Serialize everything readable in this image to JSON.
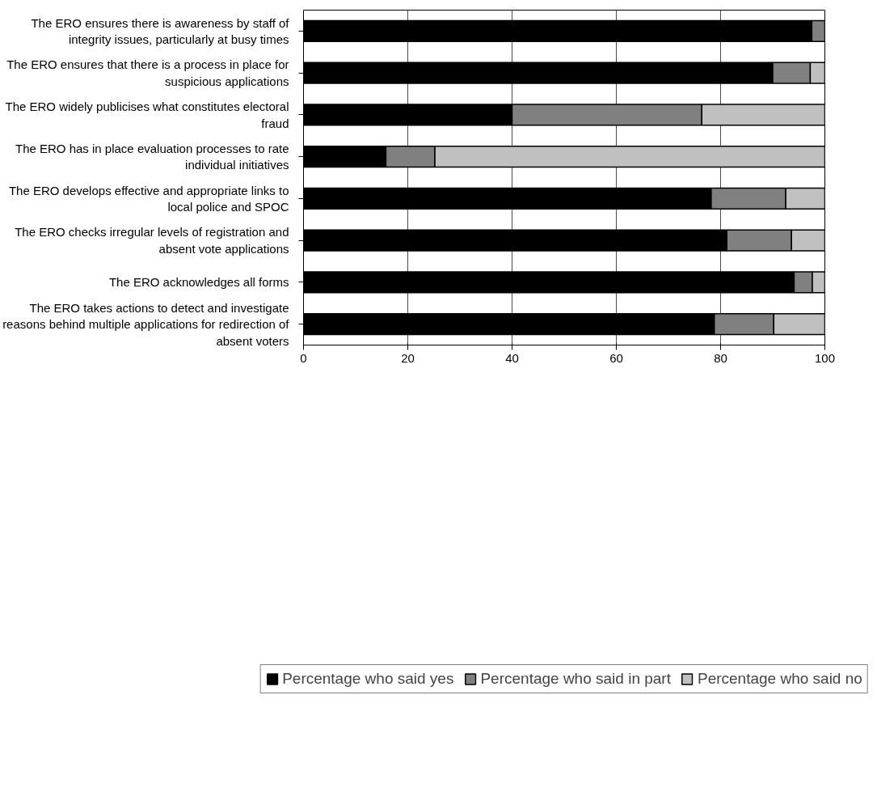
{
  "chart_data": {
    "type": "bar",
    "orientation": "horizontal",
    "stacked": true,
    "categories": [
      "The ERO ensures there is awareness by staff of\nintegrity issues, particularly at busy times",
      "The ERO ensures that there is a process in place for\nsuspicious applications",
      "The ERO widely publicises what constitutes electoral\nfraud",
      "The ERO has in place evaluation processes to rate\nindividual initiatives",
      "The ERO develops effective and appropriate links to\nlocal police and SPOC",
      "The ERO checks irregular levels of registration and\nabsent vote applications",
      "The ERO acknowledges all forms",
      "The ERO takes actions to detect and investigate\nreasons behind multiple applications for redirection of\nabsent voters"
    ],
    "series": [
      {
        "name": "Percentage who said yes",
        "color": "#000000",
        "values": [
          97.5,
          90,
          40,
          15.8,
          78.2,
          81.2,
          94.1,
          78.8
        ]
      },
      {
        "name": "Percentage who said in part",
        "color": "#808080",
        "values": [
          2.5,
          7.2,
          36.4,
          9.4,
          14.3,
          12.4,
          3.5,
          11.4
        ]
      },
      {
        "name": "Percentage who said no",
        "color": "#c0c0c0",
        "values": [
          null,
          2.8,
          23.6,
          74.8,
          7.5,
          6.4,
          2.4,
          9.8
        ]
      }
    ],
    "xlim": [
      0,
      100
    ],
    "xticks": [
      0,
      20,
      40,
      60,
      80,
      100
    ],
    "grid": "x",
    "legend": "bottom"
  }
}
